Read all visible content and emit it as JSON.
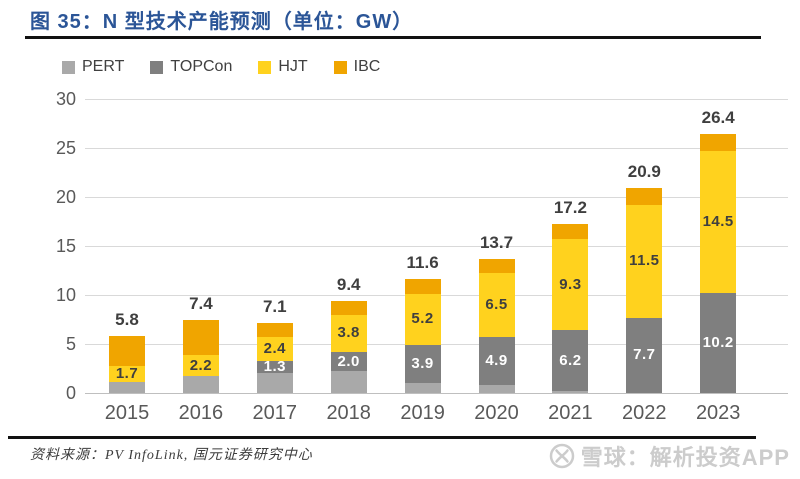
{
  "figure": {
    "title": "图 35：N 型技术产能预测（单位：GW）",
    "source_note": "资料来源：PV InfoLink, 国元证券研究中心",
    "watermark_text": "雪球：解析投资APP",
    "watermark_logo": "xueqiu-snowball-circle-icon"
  },
  "colors": {
    "title": "#2B5597",
    "pert": "#A9A9A9",
    "topcon": "#7F7F7F",
    "hjt": "#FFD21E",
    "ibc": "#F0A500",
    "axis_text": "#595959",
    "gridline": "#D9D9D9",
    "label_dark": "#3F3F3F",
    "label_light": "#FFFFFF"
  },
  "chart_data": {
    "type": "bar",
    "stacked": true,
    "title": "N 型技术产能预测",
    "unit": "GW",
    "grid": true,
    "legend_position": "top-left",
    "ylim": [
      0,
      30
    ],
    "yticks": [
      0,
      5,
      10,
      15,
      20,
      25,
      30
    ],
    "categories": [
      "2015",
      "2016",
      "2017",
      "2018",
      "2019",
      "2020",
      "2021",
      "2022",
      "2023"
    ],
    "series": [
      {
        "name": "PERT",
        "color_key": "pert",
        "values": [
          1.1,
          1.7,
          2.0,
          2.2,
          1.0,
          0.8,
          0.2,
          0,
          0
        ],
        "labels": [
          "",
          "",
          "",
          "",
          "",
          "",
          "",
          "",
          ""
        ],
        "label_color_key": "label_dark",
        "values_estimated_from_pixels": true
      },
      {
        "name": "TOPCon",
        "color_key": "topcon",
        "values": [
          0,
          0,
          1.3,
          2.0,
          3.9,
          4.9,
          6.2,
          7.7,
          10.2
        ],
        "labels": [
          "",
          "",
          "1.3",
          "2.0",
          "3.9",
          "4.9",
          "6.2",
          "7.7",
          "10.2"
        ],
        "label_color_key": "label_light"
      },
      {
        "name": "HJT",
        "color_key": "hjt",
        "values": [
          1.7,
          2.2,
          2.4,
          3.8,
          5.2,
          6.5,
          9.3,
          11.5,
          14.5
        ],
        "labels": [
          "1.7",
          "2.2",
          "2.4",
          "3.8",
          "5.2",
          "6.5",
          "9.3",
          "11.5",
          "14.5"
        ],
        "label_color_key": "label_dark"
      },
      {
        "name": "IBC",
        "color_key": "ibc",
        "values": [
          3.0,
          3.5,
          1.4,
          1.4,
          1.5,
          1.5,
          1.5,
          1.7,
          1.7
        ],
        "labels": [
          "",
          "",
          "",
          "",
          "",
          "",
          "",
          "",
          ""
        ],
        "label_color_key": "label_dark",
        "values_estimated_from_pixels": true
      }
    ],
    "totals": [
      "5.8",
      "7.4",
      "7.1",
      "9.4",
      "11.6",
      "13.7",
      "17.2",
      "20.9",
      "26.4"
    ]
  }
}
